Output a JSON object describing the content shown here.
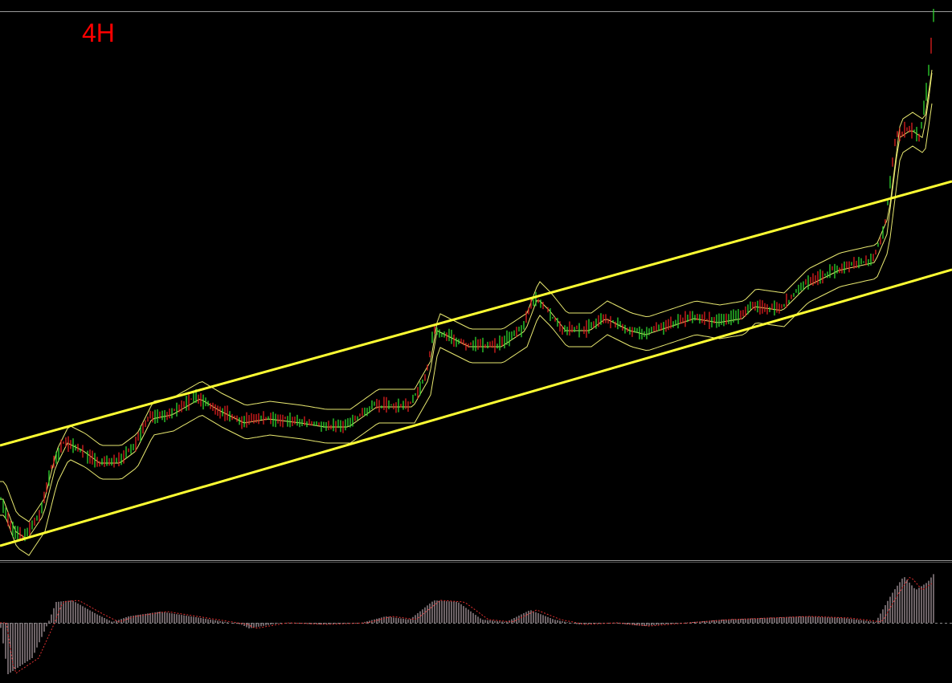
{
  "timeframe_label": "4H"
}
